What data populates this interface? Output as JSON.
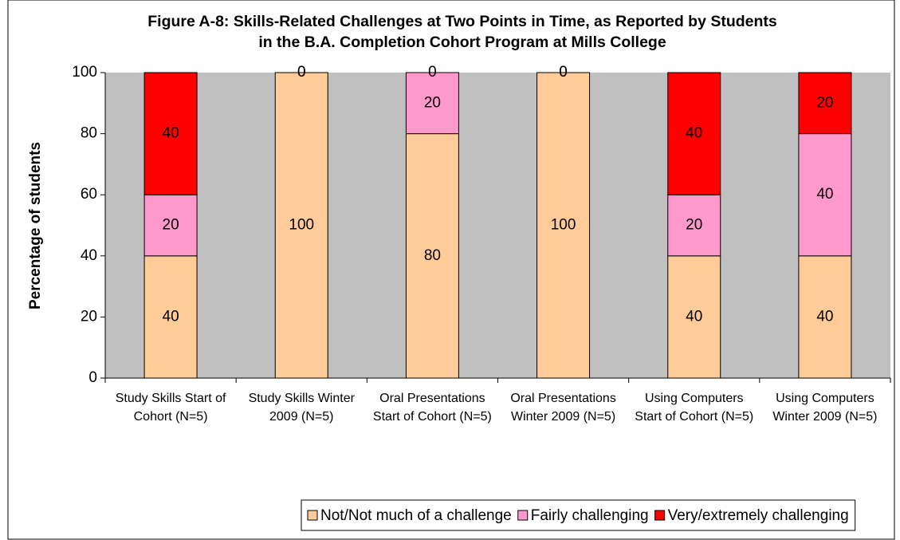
{
  "chart_data": {
    "type": "stacked_bar",
    "title": "Figure A-8: Skills-Related Challenges at Two Points in Time, as Reported by Students in the B.A. Completion Cohort Program at Mills College",
    "y_label": "Percentage of students",
    "categories": [
      "Study Skills Start of Cohort (N=5)",
      "Study Skills Winter 2009 (N=5)",
      "Oral Presentations Start of Cohort (N=5)",
      "Oral Presentations Winter 2009 (N=5)",
      "Using Computers Start of Cohort (N=5)",
      "Using Computers Winter 2009 (N=5)"
    ],
    "series": [
      {
        "name": "Not/Not much of a challenge",
        "color": "#ffcc99",
        "values": [
          40,
          100,
          80,
          100,
          40,
          40
        ]
      },
      {
        "name": "Fairly challenging",
        "color": "#ff99cc",
        "values": [
          20,
          0,
          20,
          0,
          20,
          40
        ]
      },
      {
        "name": "Very/extremely challenging",
        "color": "#ff0000",
        "values": [
          40,
          0,
          0,
          0,
          40,
          20
        ]
      }
    ],
    "ylim": [
      0,
      100
    ],
    "yticks": [
      0,
      20,
      40,
      60,
      80,
      100
    ],
    "plot_background": "#c0c0c0",
    "legend": "bottom"
  }
}
